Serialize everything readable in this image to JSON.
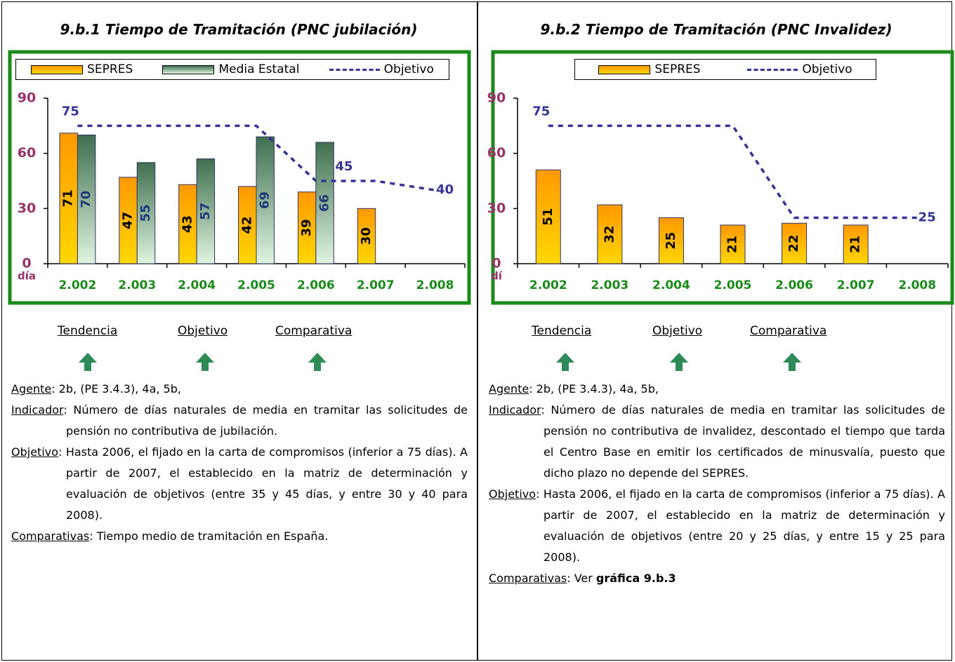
{
  "chart_data": [
    {
      "type": "bar",
      "title": "9.b.1 Tiempo de Tramitación (PNC jubilación)",
      "ylabel": "día",
      "categories": [
        "2.002",
        "2.003",
        "2.004",
        "2.005",
        "2.006",
        "2.007",
        "2.008"
      ],
      "series": [
        {
          "name": "SEPRES",
          "type": "bar",
          "color": "#ff9900",
          "color2": "#ffd700",
          "label_color": "#000000",
          "values": [
            71,
            47,
            43,
            42,
            39,
            30,
            null
          ]
        },
        {
          "name": "Media Estatal",
          "type": "bar",
          "color": "#3f6f4f",
          "color2": "#dff5df",
          "label_color": "#1f3a7a",
          "values": [
            70,
            55,
            57,
            69,
            66,
            null,
            null
          ]
        },
        {
          "name": "Objetivo",
          "type": "line",
          "color": "#333399",
          "values": [
            75,
            75,
            75,
            75,
            45,
            45,
            40
          ],
          "value_labels": [
            "75",
            null,
            null,
            null,
            "45",
            null,
            "40"
          ]
        }
      ],
      "ylim": [
        0,
        90
      ],
      "yticks": [
        0,
        30,
        60,
        90
      ],
      "grid": false
    },
    {
      "type": "bar",
      "title": "9.b.2 Tiempo de Tramitación (PNC Invalidez)",
      "ylabel": "dí",
      "categories": [
        "2.002",
        "2.003",
        "2.004",
        "2.005",
        "2.006",
        "2.007",
        "2.008"
      ],
      "series": [
        {
          "name": "SEPRES",
          "type": "bar",
          "color": "#ff9900",
          "color2": "#ffd700",
          "label_color": "#000000",
          "values": [
            51,
            32,
            25,
            21,
            22,
            21,
            null
          ]
        },
        {
          "name": "Objetivo",
          "type": "line",
          "color": "#333399",
          "values": [
            75,
            75,
            75,
            75,
            25,
            25,
            25
          ],
          "value_labels": [
            "75",
            null,
            null,
            null,
            null,
            null,
            "25"
          ]
        }
      ],
      "ylim": [
        0,
        90
      ],
      "yticks": [
        0,
        30,
        60,
        90
      ],
      "grid": false
    }
  ],
  "panels": [
    {
      "indicators": [
        "Tendencia",
        "Objetivo",
        "Comparativa"
      ],
      "paragraphs": [
        {
          "label": "Agente",
          "text": ": 2b, (PE 3.4.3), 4a, 5b,"
        },
        {
          "label": "Indicador",
          "text": ": Número de días naturales de media en tramitar las solicitudes de pensión no contributiva de jubilación."
        },
        {
          "label": "Objetivo",
          "text": ": Hasta 2006, el fijado en la carta de compromisos (inferior a 75 días). A partir de 2007, el establecido en la matriz de determinación y evaluación de objetivos (entre 35 y 45 días, y entre 30 y 40 para 2008)."
        },
        {
          "label": "Comparativas",
          "text": ": Tiempo medio de tramitación en España."
        }
      ]
    },
    {
      "indicators": [
        "Tendencia",
        "Objetivo",
        "Comparativa"
      ],
      "paragraphs": [
        {
          "label": "Agente",
          "text": ": 2b, (PE 3.4.3), 4a, 5b,"
        },
        {
          "label": "Indicador",
          "text": ": Número de días naturales de media en tramitar las solicitudes de pensión no contributiva de invalidez, descontado el tiempo que tarda el Centro Base en emitir los certificados de minusvalía, puesto que dicho plazo no depende del SEPRES."
        },
        {
          "label": "Objetivo",
          "text": ": Hasta 2006, el fijado en la carta de compromisos (inferior a 75 días). A partir de 2007, el establecido en la matriz de determinación y evaluación de objetivos (entre 20 y 25 días, y entre 15 y 25 para 2008)."
        },
        {
          "label": "Comparativas",
          "text": ": Ver ",
          "bold": "gráfica 9.b.3"
        }
      ]
    }
  ]
}
